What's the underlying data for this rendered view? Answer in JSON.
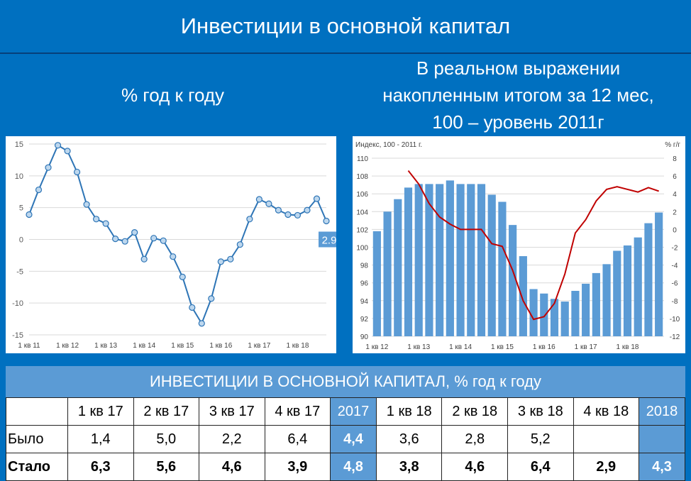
{
  "title": "Инвестиции в основной капитал",
  "left_subtitle": "% год к году",
  "right_subtitle": [
    "В реальном выражении",
    "накопленным итогом за 12 мес,",
    "100 – уровень 2011г"
  ],
  "colors": {
    "background": "#0070c0",
    "bar": "#5b9bd5",
    "line_left": "#2e75b6",
    "line_right": "#c00000",
    "table_header": "#5b9bd5"
  },
  "chart_data": [
    {
      "type": "line",
      "x_tick_labels": [
        "1 кв 11",
        "1 кв 12",
        "1 кв 13",
        "1 кв 14",
        "1 кв 15",
        "1 кв 16",
        "1 кв 17",
        "1 кв 18"
      ],
      "ylim": [
        -15,
        15
      ],
      "y_ticks": [
        "15",
        "10",
        "5",
        "0",
        "-5",
        "-10",
        "-15"
      ],
      "grid": true,
      "series": [
        {
          "values": [
            3.9,
            7.8,
            11.3,
            14.8,
            13.9,
            10.6,
            5.5,
            3.2,
            2.5,
            0.1,
            -0.3,
            1.1,
            -3.1,
            0.2,
            -0.2,
            -2.7,
            -5.9,
            -10.7,
            -13.2,
            -9.3,
            -3.5,
            -3.1,
            -0.8,
            3.2,
            6.3,
            5.6,
            4.6,
            3.9,
            3.8,
            4.6,
            6.4,
            2.9
          ]
        }
      ],
      "last_value_label": "2.9"
    },
    {
      "type": "bar+line",
      "left_axis_label": "Индекс, 100 - 2011 г.",
      "right_axis_label": "% г/г",
      "x_tick_labels": [
        "1 кв 12",
        "1 кв 13",
        "1 кв 14",
        "1 кв 15",
        "1 кв 16",
        "1 кв 17",
        "1 кв 18"
      ],
      "ylim_left": [
        90,
        110
      ],
      "left_ticks": [
        "110",
        "108",
        "106",
        "104",
        "102",
        "100",
        "98",
        "96",
        "94",
        "92",
        "90"
      ],
      "ylim_right": [
        -12,
        8
      ],
      "right_ticks": [
        "8",
        "6",
        "4",
        "2",
        "0",
        "-2",
        "-4",
        "-6",
        "-8",
        "-10",
        "-12"
      ],
      "grid": true,
      "bars": [
        101.8,
        104.0,
        105.4,
        106.7,
        107.1,
        107.1,
        107.1,
        107.5,
        107.1,
        107.1,
        107.1,
        105.9,
        105.1,
        102.5,
        99.0,
        95.3,
        94.8,
        94.2,
        93.9,
        95.1,
        95.9,
        97.1,
        98.1,
        99.6,
        100.2,
        101.1,
        102.7,
        103.9
      ],
      "line": [
        6.6,
        5.1,
        2.9,
        1.4,
        0.6,
        0.0,
        0.0,
        0.0,
        -1.6,
        -1.9,
        -4.6,
        -8.0,
        -10.1,
        -9.8,
        -8.3,
        -5.0,
        -0.4,
        1.1,
        3.2,
        4.5,
        4.8,
        4.5,
        4.2,
        4.7,
        4.3
      ]
    }
  ],
  "table": {
    "title": "ИНВЕСТИЦИИ В ОСНОВНОЙ КАПИТАЛ, %  год к году",
    "header": [
      "",
      "1 кв 17",
      "2 кв 17",
      "3 кв 17",
      "4 кв 17",
      "2017",
      "1 кв 18",
      "2 кв 18",
      "3 кв 18",
      "4 кв 18",
      "2018"
    ],
    "rows": [
      {
        "label": "Было",
        "values": [
          "1,4",
          "5,0",
          "2,2",
          "6,4",
          "4,4",
          "3,6",
          "2,8",
          "5,2",
          "",
          ""
        ]
      },
      {
        "label": "Стало",
        "values": [
          "6,3",
          "5,6",
          "4,6",
          "3,9",
          "4,8",
          "3,8",
          "4,6",
          "6,4",
          "2,9",
          "4,3"
        ]
      }
    ]
  }
}
